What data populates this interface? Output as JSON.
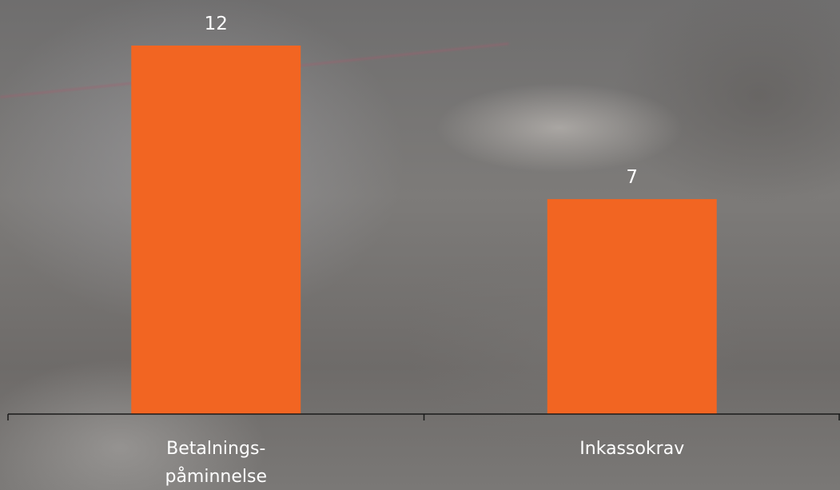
{
  "chart_data": {
    "type": "bar",
    "categories": [
      "Betalnings-påminnelse",
      "Inkassokrav"
    ],
    "category_label_lines": [
      [
        "Betalnings-",
        "påminnelse"
      ],
      [
        "Inkassokrav"
      ]
    ],
    "values": [
      12,
      7
    ],
    "data_labels": [
      "12",
      "7"
    ],
    "ylim": [
      0,
      13.5
    ],
    "bar_color": "#F26522",
    "axis_color": "#1a1a1a",
    "grid": false,
    "legend": "none"
  }
}
